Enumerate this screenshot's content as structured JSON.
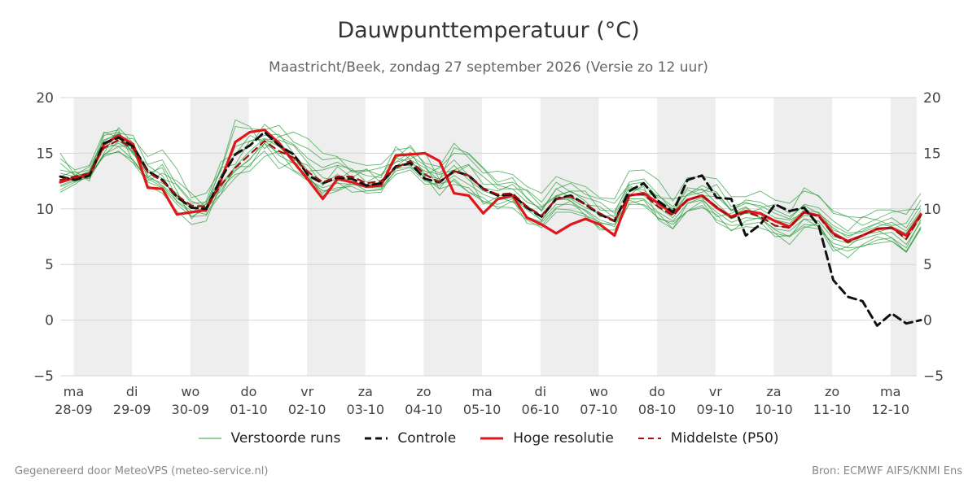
{
  "header": {
    "title": "Dauwpunttemperatuur (°C)",
    "subtitle": "Maastricht/Beek, zondag 27 september 2026 (Versie zo 12 uur)"
  },
  "footer": {
    "left": "Gegenereerd door MeteoVPS (meteo-service.nl)",
    "right": "Bron: ECMWF AIFS/KNMI Ens"
  },
  "legend": [
    {
      "label": "Verstoorde runs",
      "color": "#2e9e3e",
      "style": "thin"
    },
    {
      "label": "Controle",
      "color": "#111111",
      "style": "dashed"
    },
    {
      "label": "Hoge resolutie",
      "color": "#e0161b",
      "style": "solid"
    },
    {
      "label": "Middelste (P50)",
      "color": "#a01010",
      "style": "dashed"
    }
  ],
  "chart_data": {
    "type": "line",
    "title": "Dauwpunttemperatuur (°C)",
    "xlabel": "",
    "ylabel": "",
    "ylim": [
      -5,
      20
    ],
    "xlim": [
      -0.23,
      14.45
    ],
    "yticks": [
      -5,
      0,
      5,
      10,
      15,
      20
    ],
    "grid": true,
    "legend_position": "bottom",
    "x_tick_days": [
      "ma",
      "di",
      "wo",
      "do",
      "vr",
      "za",
      "zo",
      "ma",
      "di",
      "wo",
      "do",
      "vr",
      "za",
      "zo",
      "ma"
    ],
    "x_tick_dates": [
      "28-09",
      "29-09",
      "30-09",
      "01-10",
      "02-10",
      "03-10",
      "04-10",
      "05-10",
      "06-10",
      "07-10",
      "08-10",
      "09-10",
      "10-10",
      "11-10",
      "12-10"
    ],
    "x_tick_positions": [
      0,
      1,
      2,
      3,
      4,
      5,
      6,
      7,
      8,
      9,
      10,
      11,
      12,
      13,
      14
    ],
    "shaded_days": [
      [
        0,
        1
      ],
      [
        2,
        3
      ],
      [
        4,
        5
      ],
      [
        6,
        7
      ],
      [
        8,
        9
      ],
      [
        10,
        11
      ],
      [
        12,
        13
      ],
      [
        14,
        14.45
      ]
    ],
    "x_start": -0.23,
    "x_step": 0.25,
    "series": [
      {
        "name": "Hoge resolutie",
        "color": "#e0161b",
        "style": "solid",
        "values": [
          12.4,
          12.8,
          13.0,
          15.8,
          16.6,
          15.8,
          11.9,
          11.8,
          9.5,
          9.7,
          9.9,
          12.5,
          16.0,
          16.9,
          17.1,
          15.9,
          14.2,
          12.6,
          10.9,
          12.7,
          12.4,
          12.0,
          12.1,
          14.8,
          14.9,
          15.0,
          14.3,
          11.4,
          11.2,
          9.6,
          10.9,
          11.2,
          9.2,
          8.6,
          7.8,
          8.6,
          9.1,
          8.6,
          7.6,
          11.2,
          11.4,
          10.5,
          9.6,
          10.8,
          11.2,
          10.1,
          9.3,
          9.8,
          9.6,
          8.9,
          8.4,
          9.7,
          9.4,
          7.8,
          7.1,
          7.6,
          8.2,
          8.3,
          7.6,
          9.5
        ]
      },
      {
        "name": "Controle",
        "color": "#111111",
        "style": "dashed",
        "values": [
          12.9,
          12.6,
          13.0,
          15.9,
          16.4,
          15.6,
          13.4,
          12.6,
          11.1,
          10.1,
          10.0,
          12.7,
          14.9,
          15.7,
          16.9,
          15.7,
          14.9,
          13.0,
          12.3,
          12.8,
          12.7,
          12.1,
          12.3,
          13.8,
          14.1,
          12.7,
          12.4,
          13.4,
          13.0,
          11.8,
          11.2,
          11.3,
          10.1,
          9.3,
          10.9,
          11.2,
          10.4,
          9.5,
          8.9,
          11.6,
          12.3,
          10.7,
          9.7,
          12.6,
          13.0,
          11.0,
          10.9,
          7.6,
          8.6,
          10.4,
          9.8,
          10.1,
          8.5,
          3.6,
          2.1,
          1.7,
          -0.5,
          0.6,
          -0.3,
          0.0
        ]
      },
      {
        "name": "Middelste (P50)",
        "color": "#a01010",
        "style": "dashed",
        "values": [
          12.6,
          12.9,
          13.2,
          15.5,
          16.2,
          15.4,
          13.3,
          12.5,
          11.2,
          10.3,
          10.2,
          12.1,
          13.7,
          14.9,
          16.1,
          15.2,
          14.6,
          13.3,
          12.4,
          12.9,
          12.9,
          12.3,
          12.5,
          13.7,
          14.3,
          13.1,
          12.4,
          13.4,
          13.0,
          11.8,
          11.3,
          11.4,
          10.2,
          9.4,
          10.9,
          11.1,
          10.4,
          9.6,
          8.9,
          11.2,
          11.3,
          10.2,
          9.4,
          10.8,
          11.2,
          10.2,
          9.2,
          9.7,
          9.3,
          8.5,
          8.3,
          9.7,
          9.3,
          7.7,
          7.0,
          7.6,
          8.2,
          8.3,
          7.3,
          9.4
        ]
      }
    ],
    "members": [
      {
        "name": "",
        "values": [
          15.0,
          13.0,
          13.2,
          16.8,
          17.1,
          14.2,
          12.8,
          14.0,
          11.6,
          9.1,
          10.5,
          13.5,
          18.0,
          17.4,
          15.4,
          16.5,
          16.9,
          16.3,
          15.0,
          14.7,
          13.3,
          13.4,
          13.7,
          14.2,
          14.5,
          15.1,
          12.6,
          15.5,
          15.0,
          13.7,
          12.4,
          12.8,
          10.9,
          9.9,
          11.8,
          12.3,
          11.3,
          10.9,
          10.5,
          12.2,
          12.4,
          11.0,
          10.9,
          11.2,
          11.5,
          12.2,
          10.2,
          10.6,
          10.1,
          10.4,
          9.6,
          11.9,
          11.1,
          9.8,
          9.3,
          8.5,
          9.1,
          9.7,
          9.9,
          10.0
        ]
      },
      {
        "name": "",
        "values": [
          12.3,
          12.7,
          13.0,
          14.9,
          15.6,
          14.4,
          12.5,
          13.2,
          12.5,
          11.4,
          10.1,
          11.3,
          13.8,
          13.8,
          15.9,
          15.0,
          15.0,
          13.0,
          11.2,
          11.6,
          12.2,
          12.2,
          12.1,
          14.5,
          15.7,
          13.9,
          11.8,
          13.5,
          12.9,
          10.4,
          11.1,
          10.6,
          10.3,
          8.9,
          11.2,
          10.7,
          9.8,
          8.7,
          8.6,
          11.5,
          12.0,
          9.0,
          8.2,
          10.5,
          11.0,
          9.3,
          9.6,
          10.2,
          9.2,
          8.1,
          7.5,
          9.1,
          8.4,
          6.2,
          6.6,
          7.6,
          8.1,
          7.4,
          6.5,
          9.0
        ]
      },
      {
        "name": "",
        "values": [
          14.1,
          13.0,
          13.8,
          16.1,
          16.8,
          16.6,
          13.9,
          13.0,
          10.6,
          9.6,
          10.7,
          14.2,
          15.0,
          15.6,
          17.6,
          16.5,
          15.8,
          14.5,
          13.7,
          14.2,
          13.4,
          13.5,
          13.0,
          14.2,
          15.1,
          13.1,
          13.7,
          15.0,
          14.9,
          13.6,
          12.1,
          11.8,
          11.7,
          10.6,
          12.4,
          11.5,
          11.0,
          10.6,
          9.6,
          12.4,
          12.7,
          11.3,
          9.8,
          11.3,
          12.1,
          11.5,
          9.9,
          10.5,
          10.3,
          9.6,
          9.1,
          10.4,
          10.1,
          8.9,
          8.0,
          9.3,
          9.0,
          8.5,
          8.7,
          10.8
        ]
      },
      {
        "name": "",
        "values": [
          11.7,
          12.4,
          12.9,
          14.9,
          15.1,
          14.4,
          12.7,
          12.0,
          10.7,
          9.8,
          9.5,
          11.3,
          12.8,
          14.0,
          15.2,
          13.6,
          14.3,
          12.8,
          11.6,
          11.7,
          12.4,
          11.6,
          11.8,
          13.1,
          13.5,
          12.2,
          12.3,
          12.5,
          11.5,
          11.0,
          10.0,
          10.7,
          9.3,
          8.8,
          10.1,
          10.7,
          9.4,
          8.8,
          8.4,
          10.8,
          10.3,
          9.2,
          8.6,
          9.8,
          10.1,
          9.5,
          8.0,
          8.9,
          9.2,
          7.8,
          7.5,
          8.4,
          8.2,
          6.9,
          6.5,
          6.6,
          7.2,
          7.4,
          6.1,
          8.3
        ]
      },
      {
        "name": "",
        "values": [
          13.5,
          13.2,
          13.5,
          16.2,
          16.7,
          15.0,
          14.0,
          14.4,
          12.1,
          10.5,
          10.6,
          12.7,
          15.6,
          16.1,
          16.6,
          16.7,
          15.0,
          13.4,
          13.5,
          13.9,
          13.6,
          12.4,
          13.1,
          14.6,
          14.2,
          13.4,
          13.1,
          13.5,
          14.0,
          12.2,
          12.2,
          12.4,
          11.6,
          10.2,
          11.2,
          11.6,
          11.6,
          9.9,
          9.8,
          12.1,
          11.4,
          11.2,
          10.2,
          11.9,
          11.7,
          11.4,
          9.8,
          10.8,
          10.6,
          9.9,
          9.3,
          10.3,
          9.6,
          8.5,
          7.8,
          8.0,
          8.7,
          9.2,
          8.3,
          10.3
        ]
      },
      {
        "name": "",
        "values": [
          12.0,
          12.5,
          12.8,
          14.8,
          16.1,
          15.2,
          12.1,
          11.4,
          9.8,
          8.6,
          8.9,
          12.2,
          13.4,
          14.5,
          15.9,
          14.2,
          13.4,
          12.5,
          11.4,
          12.4,
          11.5,
          11.6,
          11.7,
          13.9,
          13.9,
          12.9,
          11.2,
          12.7,
          11.5,
          10.7,
          10.4,
          10.9,
          8.7,
          8.5,
          10.0,
          9.9,
          9.5,
          8.1,
          8.1,
          10.4,
          10.4,
          9.6,
          8.2,
          9.8,
          10.7,
          8.8,
          8.1,
          8.4,
          8.3,
          7.8,
          6.8,
          8.3,
          8.7,
          6.5,
          5.6,
          6.8,
          7.5,
          7.1,
          6.2,
          8.4
        ]
      },
      {
        "name": "",
        "values": [
          12.9,
          13.4,
          12.5,
          16.6,
          16.9,
          14.9,
          13.5,
          12.7,
          12.2,
          10.7,
          10.1,
          13.7,
          14.0,
          16.1,
          16.3,
          16.1,
          14.4,
          13.9,
          12.1,
          13.8,
          12.8,
          13.6,
          12.3,
          13.8,
          14.8,
          13.9,
          13.2,
          14.4,
          13.0,
          11.9,
          11.6,
          12.2,
          11.0,
          9.8,
          11.8,
          11.0,
          10.4,
          10.2,
          9.2,
          11.2,
          12.2,
          10.8,
          10.0,
          11.7,
          11.2,
          11.1,
          9.9,
          9.6,
          10.0,
          9.2,
          9.0,
          9.6,
          9.3,
          8.3,
          7.4,
          8.2,
          8.7,
          8.4,
          7.8,
          9.7
        ]
      },
      {
        "name": "",
        "values": [
          11.5,
          12.2,
          13.1,
          14.7,
          15.2,
          14.1,
          12.4,
          11.9,
          10.4,
          9.3,
          9.4,
          11.9,
          13.1,
          13.4,
          14.7,
          15.2,
          13.5,
          12.7,
          11.6,
          11.9,
          12.0,
          11.4,
          11.5,
          13.6,
          13.8,
          12.8,
          11.8,
          12.2,
          11.9,
          10.6,
          10.2,
          10.1,
          9.0,
          8.3,
          9.7,
          9.7,
          9.3,
          8.3,
          7.8,
          10.5,
          10.8,
          9.1,
          8.8,
          9.8,
          10.3,
          9.0,
          8.5,
          8.6,
          8.8,
          7.5,
          7.6,
          8.6,
          8.5,
          6.6,
          6.2,
          6.7,
          6.9,
          7.1,
          6.1,
          8.2
        ]
      },
      {
        "name": "",
        "values": [
          14.5,
          13.5,
          13.9,
          16.9,
          16.4,
          16.3,
          14.7,
          15.3,
          13.6,
          11.0,
          11.4,
          13.4,
          17.4,
          17.2,
          17.1,
          17.5,
          16.0,
          15.4,
          14.4,
          14.6,
          14.2,
          13.9,
          14.0,
          15.3,
          15.5,
          14.1,
          13.8,
          15.9,
          14.6,
          13.2,
          13.4,
          13.1,
          12.0,
          11.4,
          12.9,
          12.4,
          12.0,
          11.0,
          10.9,
          13.4,
          13.5,
          12.6,
          10.7,
          12.8,
          12.9,
          12.7,
          11.1,
          11.1,
          11.6,
          10.8,
          10.5,
          11.6,
          11.2,
          9.6,
          9.3,
          9.2,
          9.9,
          9.9,
          9.5,
          11.4
        ]
      },
      {
        "name": "",
        "values": [
          12.5,
          12.8,
          13.4,
          15.9,
          15.6,
          15.7,
          12.8,
          12.3,
          11.4,
          9.3,
          10.0,
          12.2,
          13.8,
          15.2,
          16.3,
          15.6,
          14.3,
          13.3,
          12.2,
          13.1,
          12.4,
          12.1,
          12.4,
          13.6,
          14.2,
          13.0,
          12.7,
          13.9,
          12.6,
          11.6,
          11.2,
          11.2,
          10.3,
          9.2,
          10.8,
          10.9,
          10.1,
          9.6,
          9.0,
          11.3,
          11.2,
          10.1,
          9.2,
          10.9,
          11.1,
          10.0,
          9.1,
          9.6,
          9.5,
          8.4,
          8.4,
          9.4,
          9.4,
          7.5,
          7.2,
          7.7,
          7.9,
          8.3,
          7.2,
          9.2
        ]
      },
      {
        "name": "",
        "values": [
          13.2,
          12.9,
          12.7,
          15.0,
          17.3,
          15.9,
          13.2,
          13.7,
          10.9,
          10.2,
          9.7,
          13.0,
          14.9,
          16.6,
          16.0,
          16.2,
          15.7,
          14.1,
          12.8,
          12.5,
          13.5,
          13.0,
          12.8,
          15.6,
          14.4,
          13.7,
          12.5,
          13.2,
          13.9,
          12.9,
          11.8,
          11.8,
          10.6,
          10.1,
          11.1,
          11.6,
          10.7,
          9.3,
          9.4,
          11.9,
          11.7,
          10.4,
          9.5,
          11.3,
          11.8,
          10.5,
          9.3,
          10.1,
          9.1,
          9.0,
          8.7,
          9.9,
          9.7,
          8.1,
          7.6,
          7.9,
          8.4,
          8.8,
          8.0,
          9.9
        ]
      },
      {
        "name": "",
        "values": [
          12.1,
          12.6,
          13.3,
          15.4,
          15.9,
          15.1,
          13.0,
          12.1,
          11.0,
          10.0,
          10.4,
          11.6,
          13.5,
          14.4,
          16.2,
          14.8,
          14.1,
          12.6,
          11.9,
          12.3,
          12.2,
          11.9,
          11.9,
          13.4,
          13.7,
          12.5,
          12.1,
          13.0,
          12.2,
          11.3,
          10.8,
          11.0,
          9.9,
          9.0,
          10.4,
          10.4,
          9.9,
          9.0,
          8.6,
          10.9,
          10.9,
          9.7,
          8.9,
          10.5,
          10.8,
          9.7,
          8.8,
          9.2,
          9.1,
          8.2,
          8.0,
          9.1,
          8.9,
          7.3,
          6.9,
          7.3,
          7.7,
          7.9,
          6.8,
          8.8
        ]
      }
    ]
  }
}
